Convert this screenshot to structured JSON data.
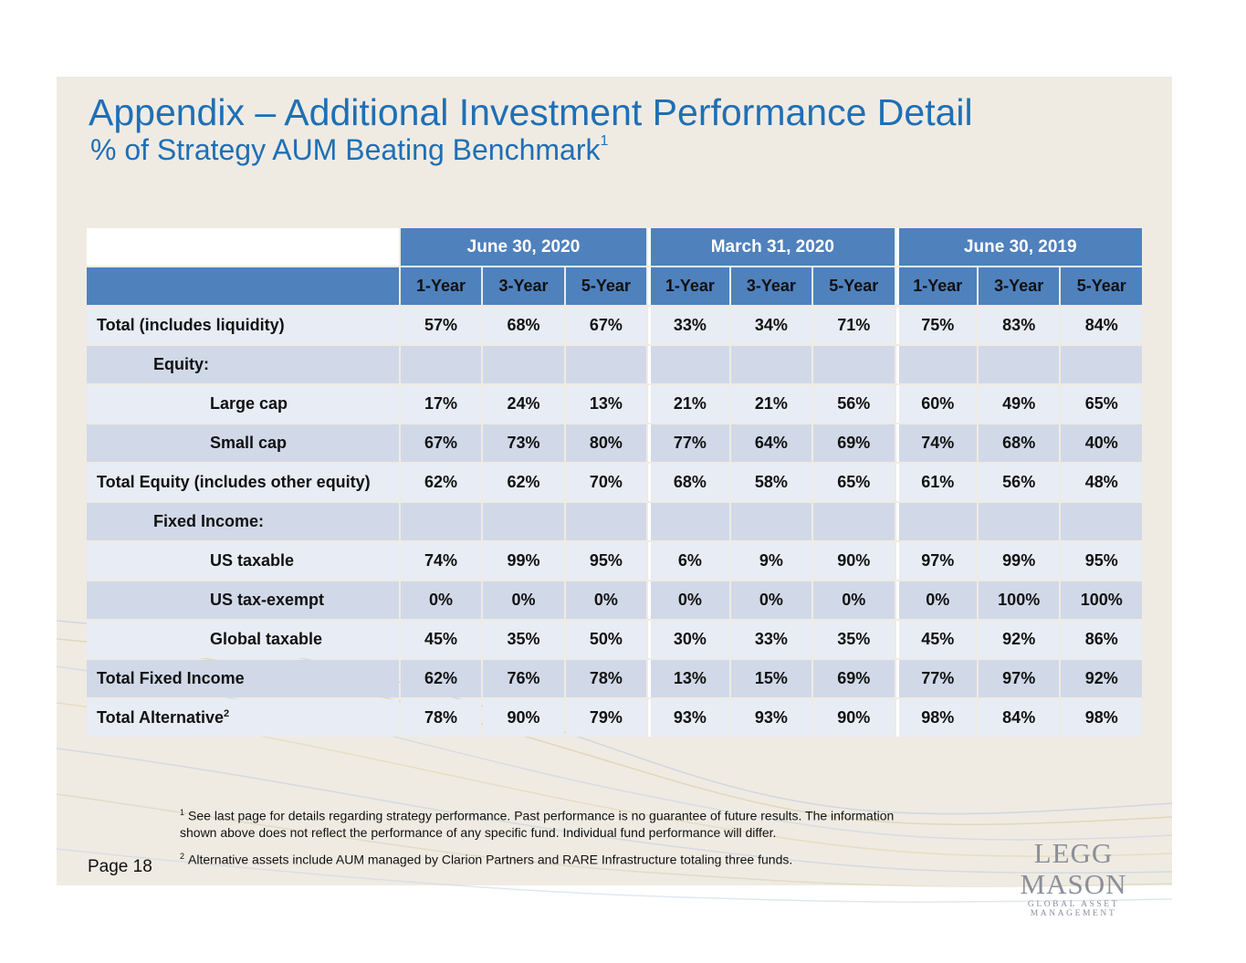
{
  "title": "Appendix – Additional Investment Performance Detail",
  "subtitle": "% of Strategy AUM Beating Benchmark",
  "subtitle_sup": "1",
  "periods": [
    "June 30, 2020",
    "March 31, 2020",
    "June 30, 2019"
  ],
  "horizons": [
    "1-Year",
    "3-Year",
    "5-Year",
    "1-Year",
    "3-Year",
    "5-Year",
    "1-Year",
    "3-Year",
    "5-Year"
  ],
  "rows": [
    {
      "label": "Total (includes liquidity)",
      "values": [
        "57%",
        "68%",
        "67%",
        "33%",
        "34%",
        "71%",
        "75%",
        "83%",
        "84%"
      ]
    },
    {
      "label": "Equity:",
      "values": [
        "",
        "",
        "",
        "",
        "",
        "",
        "",
        "",
        ""
      ]
    },
    {
      "label": "Large cap",
      "values": [
        "17%",
        "24%",
        "13%",
        "21%",
        "21%",
        "56%",
        "60%",
        "49%",
        "65%"
      ]
    },
    {
      "label": "Small cap",
      "values": [
        "67%",
        "73%",
        "80%",
        "77%",
        "64%",
        "69%",
        "74%",
        "68%",
        "40%"
      ]
    },
    {
      "label": "Total Equity (includes other equity)",
      "values": [
        "62%",
        "62%",
        "70%",
        "68%",
        "58%",
        "65%",
        "61%",
        "56%",
        "48%"
      ]
    },
    {
      "label": "Fixed Income:",
      "values": [
        "",
        "",
        "",
        "",
        "",
        "",
        "",
        "",
        ""
      ]
    },
    {
      "label": "US taxable",
      "values": [
        "74%",
        "99%",
        "95%",
        "6%",
        "9%",
        "90%",
        "97%",
        "99%",
        "95%"
      ]
    },
    {
      "label": "US tax-exempt",
      "values": [
        "0%",
        "0%",
        "0%",
        "0%",
        "0%",
        "0%",
        "0%",
        "100%",
        "100%"
      ]
    },
    {
      "label": "Global taxable",
      "values": [
        "45%",
        "35%",
        "50%",
        "30%",
        "33%",
        "35%",
        "45%",
        "92%",
        "86%"
      ]
    },
    {
      "label": "Total Fixed Income",
      "values": [
        "62%",
        "76%",
        "78%",
        "13%",
        "15%",
        "69%",
        "77%",
        "97%",
        "92%"
      ]
    },
    {
      "label": "Total Alternative",
      "label_sup": "2",
      "values": [
        "78%",
        "90%",
        "79%",
        "93%",
        "93%",
        "90%",
        "98%",
        "84%",
        "98%"
      ]
    }
  ],
  "footnotes": [
    {
      "marker": "1",
      "text": "See last page for details regarding strategy performance. Past performance is no guarantee of future results. The information shown above does not reflect the performance of any specific fund. Individual fund performance will differ."
    },
    {
      "marker": "2",
      "text": "Alternative assets include AUM managed by Clarion Partners and RARE Infrastructure totaling three funds."
    }
  ],
  "page_label": "Page 18",
  "logo": {
    "name": "LEGG MASON",
    "tagline": "GLOBAL ASSET MANAGEMENT"
  }
}
